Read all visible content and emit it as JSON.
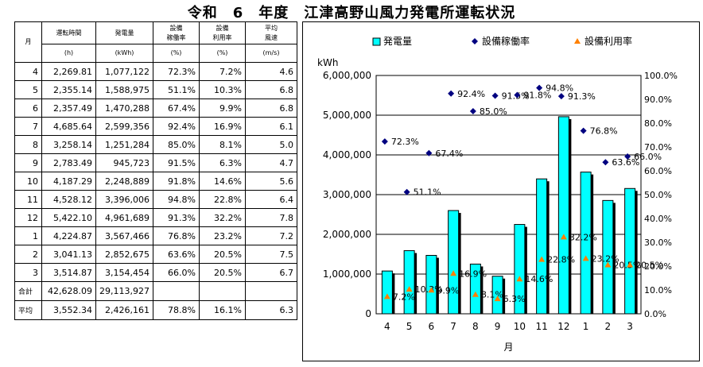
{
  "title": "令和　6　年度　江津高野山風力発電所運転状況",
  "table": {
    "headers": [
      {
        "top": "月",
        "unit": ""
      },
      {
        "top": "運転時間",
        "unit": "(h)"
      },
      {
        "top": "発電量",
        "unit": "(kWh)"
      },
      {
        "top": "設備\n稼働率",
        "unit": "(%)"
      },
      {
        "top": "設備\n利用率",
        "unit": "(%)"
      },
      {
        "top": "平均\n風速",
        "unit": "(m/s)"
      }
    ],
    "rows": [
      {
        "month": "4",
        "hours": "2,269.81",
        "energy": "1,077,122",
        "availability": "72.3%",
        "utilization": "7.2%",
        "wind": "4.6"
      },
      {
        "month": "5",
        "hours": "2,355.14",
        "energy": "1,588,975",
        "availability": "51.1%",
        "utilization": "10.3%",
        "wind": "6.8"
      },
      {
        "month": "6",
        "hours": "2,357.49",
        "energy": "1,470,288",
        "availability": "67.4%",
        "utilization": "9.9%",
        "wind": "6.8"
      },
      {
        "month": "7",
        "hours": "4,685.64",
        "energy": "2,599,356",
        "availability": "92.4%",
        "utilization": "16.9%",
        "wind": "6.1"
      },
      {
        "month": "8",
        "hours": "3,258.14",
        "energy": "1,251,284",
        "availability": "85.0%",
        "utilization": "8.1%",
        "wind": "5.0"
      },
      {
        "month": "9",
        "hours": "2,783.49",
        "energy": "945,723",
        "availability": "91.5%",
        "utilization": "6.3%",
        "wind": "4.7"
      },
      {
        "month": "10",
        "hours": "4,187.29",
        "energy": "2,248,889",
        "availability": "91.8%",
        "utilization": "14.6%",
        "wind": "5.6"
      },
      {
        "month": "11",
        "hours": "4,528.12",
        "energy": "3,396,006",
        "availability": "94.8%",
        "utilization": "22.8%",
        "wind": "6.4"
      },
      {
        "month": "12",
        "hours": "5,422.10",
        "energy": "4,961,689",
        "availability": "91.3%",
        "utilization": "32.2%",
        "wind": "7.8"
      },
      {
        "month": "1",
        "hours": "4,224.87",
        "energy": "3,567,466",
        "availability": "76.8%",
        "utilization": "23.2%",
        "wind": "7.2"
      },
      {
        "month": "2",
        "hours": "3,041.13",
        "energy": "2,852,675",
        "availability": "63.6%",
        "utilization": "20.5%",
        "wind": "7.5"
      },
      {
        "month": "3",
        "hours": "3,514.87",
        "energy": "3,154,454",
        "availability": "66.0%",
        "utilization": "20.5%",
        "wind": "6.7"
      }
    ],
    "total": {
      "label": "合計",
      "hours": "42,628.09",
      "energy": "29,113,927",
      "availability": "",
      "utilization": "",
      "wind": ""
    },
    "average": {
      "label": "平均",
      "hours": "3,552.34",
      "energy": "2,426,161",
      "availability": "78.8%",
      "utilization": "16.1%",
      "wind": "6.3"
    }
  },
  "chart_data": {
    "type": "bar",
    "categories": [
      "4",
      "5",
      "6",
      "7",
      "8",
      "9",
      "10",
      "11",
      "12",
      "1",
      "2",
      "3"
    ],
    "series": [
      {
        "name": "発電量",
        "kind": "bar",
        "axis": "left",
        "color": "#00ffff",
        "values": [
          1077122,
          1588975,
          1470288,
          2599356,
          1251284,
          945723,
          2248889,
          3396006,
          4961689,
          3567466,
          2852675,
          3154454
        ]
      },
      {
        "name": "設備稼働率",
        "kind": "scatter",
        "marker": "diamond",
        "axis": "right",
        "color": "#000080",
        "values": [
          72.3,
          51.1,
          67.4,
          92.4,
          85.0,
          91.5,
          91.8,
          94.8,
          91.3,
          76.8,
          63.6,
          66.0
        ],
        "labels": [
          "72.3%",
          "51.1%",
          "67.4%",
          "92.4%",
          "85.0%",
          "91.5%",
          "91.8%",
          "94.8%",
          "91.3%",
          "76.8%",
          "63.6%",
          "66.0%"
        ]
      },
      {
        "name": "設備利用率",
        "kind": "scatter",
        "marker": "triangle",
        "axis": "right",
        "color": "#ff8000",
        "values": [
          7.2,
          10.3,
          9.9,
          16.9,
          8.1,
          6.3,
          14.6,
          22.8,
          32.2,
          23.2,
          20.5,
          20.5
        ],
        "labels": [
          "7.2%",
          "10.3%",
          "9.9%",
          "16.9%",
          "8.1%",
          "6.3%",
          "14.6%",
          "22.8%",
          "32.2%",
          "23.2%",
          "20.5%",
          "20.5%"
        ]
      }
    ],
    "ylabel_left": "kWh",
    "ylim_left": [
      0,
      6000000
    ],
    "yticks_left": [
      "0",
      "1,000,000",
      "2,000,000",
      "3,000,000",
      "4,000,000",
      "5,000,000",
      "6,000,000"
    ],
    "ylim_right": [
      0,
      100
    ],
    "yticks_right": [
      "0.0%",
      "10.0%",
      "20.0%",
      "30.0%",
      "40.0%",
      "50.0%",
      "60.0%",
      "70.0%",
      "80.0%",
      "90.0%",
      "100.0%"
    ],
    "xlabel": "月",
    "legend_position": "top"
  }
}
